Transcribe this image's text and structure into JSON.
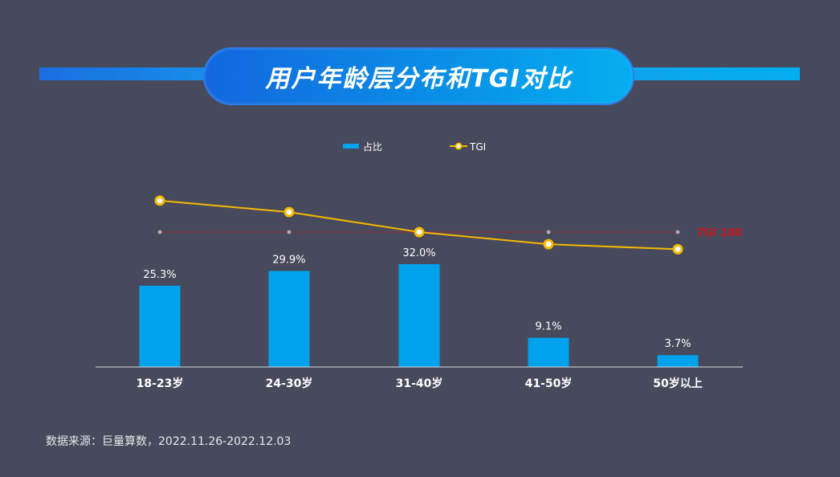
{
  "title": "用户年龄层分布和TGI对比",
  "source_note": "数据来源：巨量算数，2022.11.26-2022.12.03",
  "colors": {
    "background": "#474a5c",
    "bar": "#00a2ec",
    "line": "#f5b800",
    "reference": "#c8161d",
    "text": "#ffffff"
  },
  "chart_data": {
    "type": "bar",
    "title": "用户年龄层分布和TGI对比",
    "categories": [
      "18-23岁",
      "24-30岁",
      "31-40岁",
      "41-50岁",
      "50岁以上"
    ],
    "series": [
      {
        "name": "占比",
        "type": "bar",
        "values": [
          25.3,
          29.9,
          32.0,
          9.1,
          3.7
        ],
        "labels": [
          "25.3%",
          "29.9%",
          "32.0%",
          "9.1%",
          "3.7%"
        ]
      },
      {
        "name": "TGI",
        "type": "line",
        "values": [
          144,
          128,
          100,
          83,
          76
        ]
      }
    ],
    "reference_line": {
      "label": "TGI 100",
      "value": 100
    },
    "legend_position": "top-center",
    "grid": false
  }
}
